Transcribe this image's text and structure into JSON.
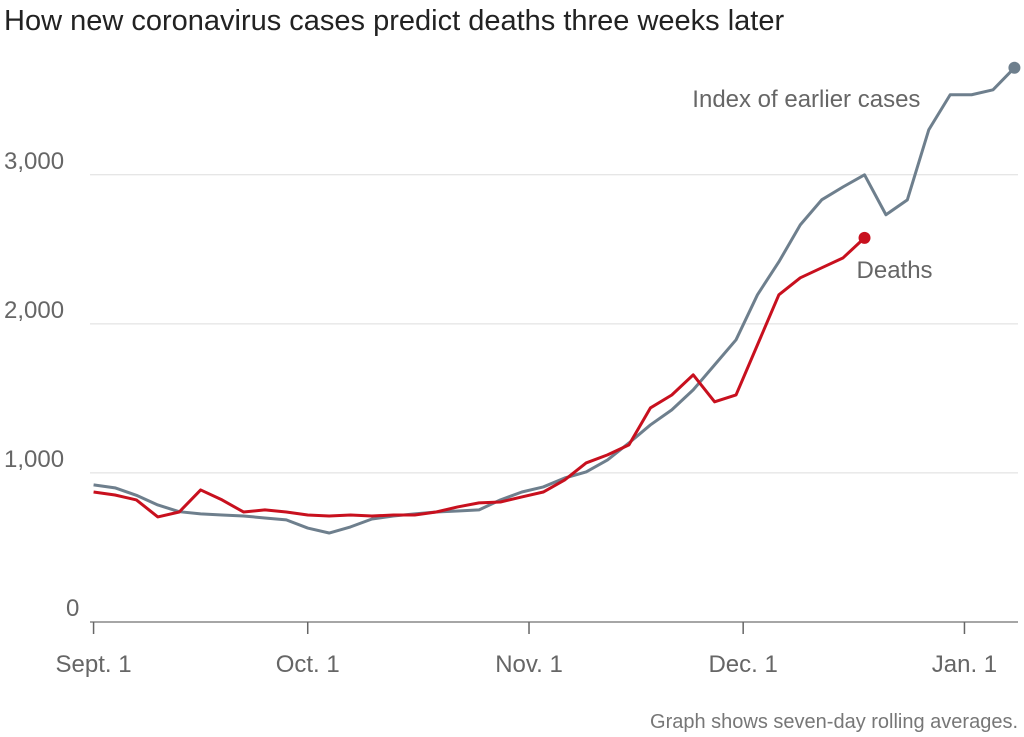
{
  "chart_data": {
    "type": "line",
    "title": "How new coronavirus cases predict deaths three weeks later",
    "note": "Graph shows seven-day rolling averages.",
    "x": [
      0,
      3,
      6,
      9,
      12,
      15,
      18,
      21,
      24,
      27,
      30,
      33,
      36,
      39,
      42,
      45,
      48,
      51,
      54,
      57,
      60,
      63,
      66,
      69,
      72,
      75,
      78,
      81,
      84,
      87,
      90,
      93,
      96,
      99,
      102,
      105,
      108,
      111,
      114,
      117,
      120,
      123,
      126,
      129
    ],
    "series": [
      {
        "name": "Index of earlier cases",
        "color": "#6e7f8d",
        "values": [
          920,
          900,
          850,
          785,
          740,
          725,
          718,
          711,
          698,
          685,
          630,
          597,
          638,
          691,
          711,
          725,
          738,
          745,
          752,
          819,
          872,
          906,
          966,
          1007,
          1087,
          1201,
          1322,
          1423,
          1557,
          1725,
          1893,
          2195,
          2416,
          2664,
          2832,
          2919,
          3000,
          2732,
          2832,
          3302,
          3537,
          3537,
          3570,
          3718
        ]
      },
      {
        "name": "Deaths",
        "color": "#c8101e",
        "values": [
          872,
          852,
          819,
          705,
          738,
          886,
          819,
          738,
          752,
          738,
          718,
          711,
          718,
          711,
          718,
          718,
          738,
          772,
          799,
          805,
          839,
          872,
          953,
          1067,
          1121,
          1188,
          1436,
          1523,
          1658,
          1477,
          1523,
          1859,
          2195,
          2309,
          2376,
          2443,
          2577,
          null,
          null,
          null,
          null,
          null,
          null,
          null
        ]
      }
    ],
    "xlim": [
      -0.5,
      129.5
    ],
    "xticks": [
      {
        "value": 0,
        "label": "Sept. 1"
      },
      {
        "value": 30,
        "label": "Oct. 1"
      },
      {
        "value": 61,
        "label": "Nov. 1"
      },
      {
        "value": 91,
        "label": "Dec. 1"
      },
      {
        "value": 122,
        "label": "Jan. 1"
      }
    ],
    "ylim": [
      0,
      3750
    ],
    "yticks": [
      0,
      {
        "value": 1000,
        "label": "1,000"
      },
      {
        "value": 2000,
        "label": "2,000"
      },
      {
        "value": 3000,
        "label": "3,000"
      }
    ],
    "grid": true
  }
}
